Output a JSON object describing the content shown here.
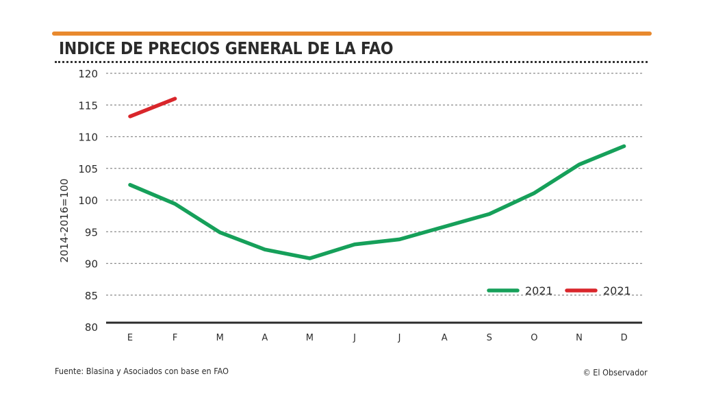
{
  "header": {
    "title": "INDICE DE PRECIOS GENERAL DE LA FAO",
    "accent_color": "#e8892e"
  },
  "footer": {
    "source": "Fuente: Blasina y Asociados con base en FAO",
    "credit": "© El Observador"
  },
  "chart_data": {
    "type": "line",
    "title": "INDICE DE PRECIOS GENERAL DE LA FAO",
    "xlabel": "",
    "ylabel": "2014-2016=100",
    "categories": [
      "E",
      "F",
      "M",
      "A",
      "M",
      "J",
      "J",
      "A",
      "S",
      "O",
      "N",
      "D"
    ],
    "ylim": [
      80,
      120
    ],
    "yticks": [
      80,
      85,
      90,
      95,
      100,
      105,
      110,
      115,
      120
    ],
    "grid": true,
    "legend_position": "bottom-right",
    "series": [
      {
        "name": "2021",
        "color": "#16a05a",
        "values": [
          102.4,
          99.4,
          94.9,
          92.2,
          90.8,
          93.0,
          93.8,
          95.8,
          97.8,
          101.1,
          105.6,
          108.5
        ]
      },
      {
        "name": "2021",
        "color": "#d9262b",
        "values": [
          113.2,
          116.0,
          null,
          null,
          null,
          null,
          null,
          null,
          null,
          null,
          null,
          null
        ]
      }
    ]
  }
}
